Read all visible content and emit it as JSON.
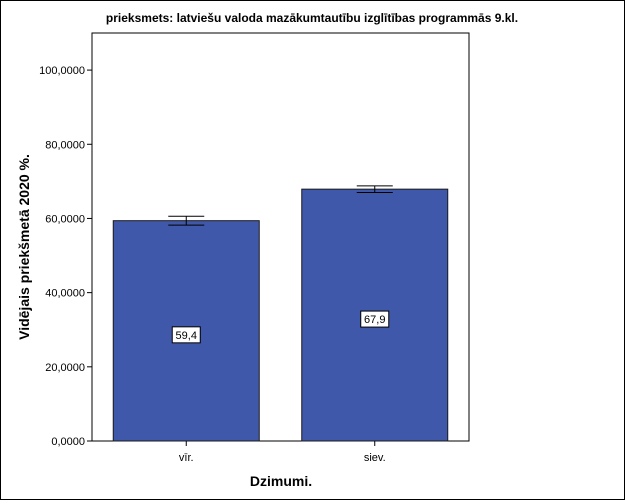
{
  "chart_data": {
    "type": "bar",
    "title": "prieksmets: latviešu valoda mazākumtautību izglītības programmās 9.kl.",
    "xlabel": "Dzimumi.",
    "ylabel": "Vidējais priekšmetā 2020 %.",
    "categories": [
      "vīr.",
      "siev."
    ],
    "values": [
      59.4,
      67.9
    ],
    "value_labels": [
      "59,4",
      "67,9"
    ],
    "error_bars": [
      {
        "low": 58.2,
        "high": 60.6
      },
      {
        "low": 67.0,
        "high": 68.8
      }
    ],
    "ylim": [
      0,
      110
    ],
    "yticks": [
      0,
      20,
      40,
      60,
      80,
      100
    ],
    "ytick_labels": [
      "0,0000",
      "20,0000",
      "40,0000",
      "60,0000",
      "80,0000",
      "100,0000"
    ],
    "grid": false,
    "colors": {
      "bar": "#3f58a9",
      "bar_edge": "#1a1a1a",
      "axis": "#000000"
    }
  }
}
